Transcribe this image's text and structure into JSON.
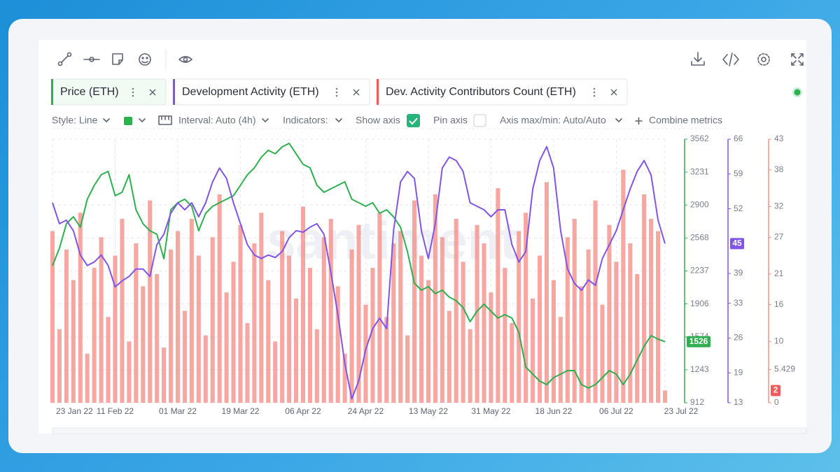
{
  "toolbar": {
    "style": "Style: Line",
    "interval": "Interval: Auto (4h)",
    "indicators": "Indicators:",
    "show_axis": "Show axis",
    "pin_axis": "Pin axis",
    "axis_minmax": "Axis max/min: Auto/Auto",
    "combine": "Combine metrics"
  },
  "watermark": "santiment",
  "chart_data": {
    "type": "line",
    "categories": [
      "23 Jan 22",
      null,
      null,
      null,
      null,
      null,
      null,
      null,
      null,
      "11 Feb 22",
      null,
      null,
      null,
      null,
      null,
      null,
      null,
      null,
      "01 Mar 22",
      null,
      null,
      null,
      null,
      null,
      null,
      null,
      null,
      "19 Mar 22",
      null,
      null,
      null,
      null,
      null,
      null,
      null,
      null,
      "06 Apr 22",
      null,
      null,
      null,
      null,
      null,
      null,
      null,
      null,
      "24 Apr 22",
      null,
      null,
      null,
      null,
      null,
      null,
      null,
      null,
      "13 May 22",
      null,
      null,
      null,
      null,
      null,
      null,
      null,
      null,
      "31 May 22",
      null,
      null,
      null,
      null,
      null,
      null,
      null,
      null,
      "18 Jun 22",
      null,
      null,
      null,
      null,
      null,
      null,
      null,
      null,
      "06 Jul 22",
      null,
      null,
      null,
      null,
      null,
      null,
      "23 Jul 22"
    ],
    "series": [
      {
        "name": "Price (ETH)",
        "color": "#2eb04f",
        "axis": "y",
        "values": [
          2290,
          2466,
          2712,
          2782,
          2677,
          2958,
          3098,
          3204,
          3239,
          2993,
          3028,
          3204,
          2852,
          2712,
          2641,
          2606,
          2360,
          2852,
          2923,
          2958,
          2887,
          2641,
          2817,
          2887,
          2923,
          2958,
          2993,
          3098,
          3204,
          3274,
          3380,
          3450,
          3415,
          3485,
          3520,
          3415,
          3309,
          3274,
          3098,
          3028,
          3063,
          3098,
          3133,
          2958,
          2923,
          2887,
          2923,
          2817,
          2852,
          2782,
          2677,
          2430,
          2114,
          2044,
          2079,
          2009,
          2044,
          1974,
          1938,
          1868,
          1727,
          1833,
          1903,
          1833,
          1763,
          1798,
          1763,
          1622,
          1271,
          1200,
          1130,
          1095,
          1165,
          1200,
          1235,
          1235,
          1095,
          1060,
          1095,
          1165,
          1235,
          1200,
          1095,
          1200,
          1341,
          1481,
          1587,
          1552,
          1526
        ]
      },
      {
        "name": "Development Activity (ETH)",
        "color": "#8155e6",
        "axis": "y2",
        "values": [
          53.2,
          49.0,
          49.7,
          47.6,
          42.7,
          40.6,
          41.3,
          42.7,
          40.6,
          36.3,
          37.5,
          38.4,
          39.9,
          39.9,
          38.4,
          44.8,
          46.9,
          51.1,
          53.2,
          51.8,
          53.2,
          50.4,
          53.2,
          57.4,
          60.2,
          58.1,
          53.2,
          49.0,
          44.8,
          42.7,
          42.0,
          42.7,
          42.2,
          43.4,
          46.2,
          47.6,
          47.3,
          48.3,
          49.0,
          46.9,
          39.2,
          30.7,
          20.9,
          13.8,
          17.4,
          23.7,
          27.9,
          30.0,
          27.9,
          47.6,
          57.4,
          59.5,
          58.1,
          47.6,
          42.0,
          49.0,
          60.2,
          62.4,
          61.7,
          59.5,
          53.2,
          52.5,
          51.8,
          50.4,
          51.8,
          51.8,
          44.8,
          41.3,
          43.4,
          56.0,
          61.7,
          64.5,
          60.2,
          47.6,
          39.9,
          37.0,
          35.6,
          37.7,
          36.6,
          42.0,
          44.8,
          47.6,
          51.8,
          56.0,
          59.5,
          61.7,
          58.8,
          49.7,
          45
        ]
      },
      {
        "name": "Dev. Activity Contributors Count (ETH)",
        "color": "#f5918b",
        "axis": "y3",
        "type": "bar",
        "values": [
          28,
          12,
          25,
          20,
          31,
          8,
          22,
          27,
          14,
          24,
          30,
          10,
          26,
          19,
          33,
          21,
          9,
          25,
          28,
          15,
          30,
          24,
          11,
          27,
          34,
          18,
          23,
          29,
          13,
          26,
          31,
          20,
          10,
          28,
          24,
          17,
          32,
          22,
          12,
          27,
          30,
          19,
          8,
          25,
          29,
          16,
          22,
          31,
          14,
          26,
          28,
          11,
          33,
          24,
          20,
          34,
          27,
          15,
          30,
          23,
          12,
          29,
          26,
          18,
          35,
          22,
          13,
          28,
          31,
          17,
          24,
          36,
          20,
          14,
          27,
          30,
          19,
          25,
          33,
          16,
          29,
          23,
          38,
          26,
          21,
          34,
          30,
          28,
          2
        ]
      }
    ],
    "ylim": [
      912,
      3562
    ],
    "yticks": [
      912,
      1243,
      1574,
      1906,
      2237,
      2568,
      2900,
      3231,
      3562
    ],
    "y2lim": [
      13,
      66
    ],
    "y2ticks": [
      13,
      19,
      26,
      33,
      39,
      52,
      59,
      66
    ],
    "y3lim": [
      0,
      43
    ],
    "y3ticks": [
      0,
      5.429,
      10,
      16,
      21,
      27,
      32,
      38,
      43
    ],
    "grid": true
  }
}
